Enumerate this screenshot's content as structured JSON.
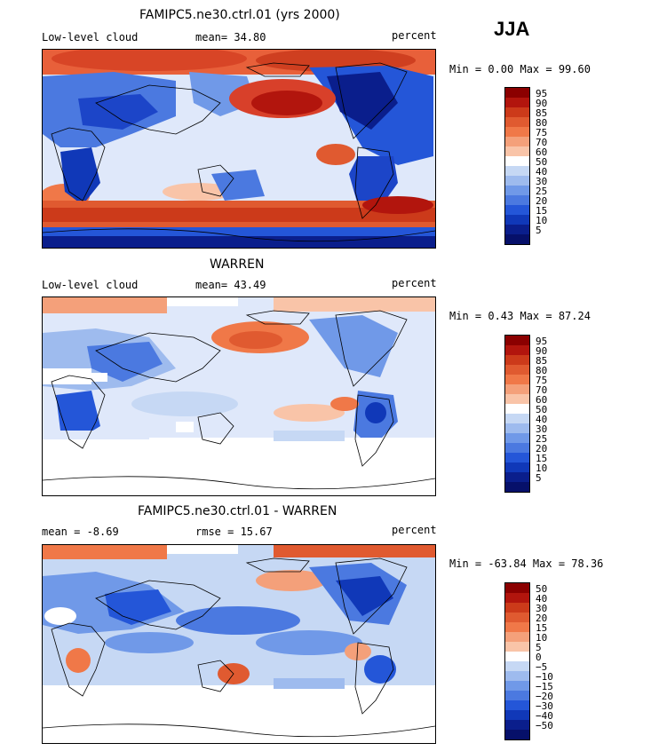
{
  "season": "JJA",
  "panels": [
    {
      "title": "FAMIPC5.ne30.ctrl.01 (yrs 2000)",
      "left_label": "Low-level cloud",
      "center_label": "mean=  34.80",
      "right_label": "percent",
      "minmax": "Min =   0.00 Max =  99.60",
      "colorbar": {
        "levels": [
          "95",
          "90",
          "85",
          "80",
          "75",
          "70",
          "60",
          "50",
          "40",
          "30",
          "25",
          "20",
          "15",
          "10",
          "5"
        ],
        "colors": [
          "#8b0000",
          "#b2150d",
          "#cc3a1a",
          "#e05a30",
          "#f07848",
          "#f4a07a",
          "#f9c4a8",
          "#ffffff",
          "#c6d8f4",
          "#9ebbee",
          "#7099e8",
          "#4b79e0",
          "#2456d8",
          "#1038b8",
          "#0a1e8c",
          "#06106a"
        ]
      }
    },
    {
      "title": "WARREN",
      "left_label": "Low-level cloud",
      "center_label": "mean=  43.49",
      "right_label": "percent",
      "minmax": "Min =   0.43 Max =  87.24",
      "colorbar": {
        "levels": [
          "95",
          "90",
          "85",
          "80",
          "75",
          "70",
          "60",
          "50",
          "40",
          "30",
          "25",
          "20",
          "15",
          "10",
          "5"
        ],
        "colors": [
          "#8b0000",
          "#b2150d",
          "#cc3a1a",
          "#e05a30",
          "#f07848",
          "#f4a07a",
          "#f9c4a8",
          "#ffffff",
          "#c6d8f4",
          "#9ebbee",
          "#7099e8",
          "#4b79e0",
          "#2456d8",
          "#1038b8",
          "#0a1e8c",
          "#06106a"
        ]
      }
    },
    {
      "title": "FAMIPC5.ne30.ctrl.01 - WARREN",
      "left_label": "mean =   -8.69",
      "center_label": "rmse =   15.67",
      "right_label": "percent",
      "minmax": "Min = -63.84 Max =  78.36",
      "colorbar": {
        "levels": [
          "50",
          "40",
          "30",
          "20",
          "15",
          "10",
          "5",
          "0",
          "−5",
          "−10",
          "−15",
          "−20",
          "−30",
          "−40",
          "−50"
        ],
        "colors": [
          "#8b0000",
          "#b2150d",
          "#cc3a1a",
          "#e05a30",
          "#f07848",
          "#f4a07a",
          "#f9c4a8",
          "#ffffff",
          "#c6d8f4",
          "#9ebbee",
          "#7099e8",
          "#4b79e0",
          "#2456d8",
          "#1038b8",
          "#0a1e8c",
          "#06106a"
        ]
      }
    }
  ]
}
